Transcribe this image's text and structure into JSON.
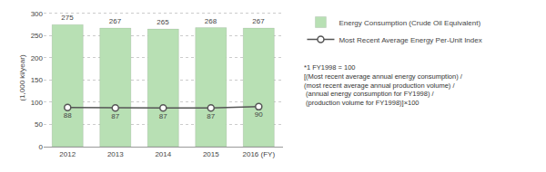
{
  "chart_data": {
    "type": "bar",
    "categories": [
      "2012",
      "2013",
      "2014",
      "2015",
      "2016 (FY)"
    ],
    "series": [
      {
        "name": "Energy Consumption (Crude Oil Equivalent)",
        "type": "bar",
        "color": "#b8e0b4",
        "values": [
          275,
          267,
          265,
          268,
          267
        ]
      },
      {
        "name": "Most Recent Average Energy Per-Unit Index",
        "type": "line",
        "color": "#555555",
        "marker": "circle",
        "values": [
          88,
          87,
          87,
          87,
          90
        ]
      }
    ],
    "ylabel": "(1,000 kl/year)",
    "ylim": [
      0,
      310
    ],
    "yticks": [
      0,
      50,
      100,
      150,
      200,
      250,
      300
    ],
    "grid": true,
    "data_labels": true,
    "legend": "right",
    "annotations": [
      "*1 FY1998 = 100",
      "[(Most recent average annual energy consumption) /",
      "(most recent average annual production volume) /",
      " (annual energy consumption for FY1998) /",
      " (production volume for FY1998)]×100"
    ]
  }
}
